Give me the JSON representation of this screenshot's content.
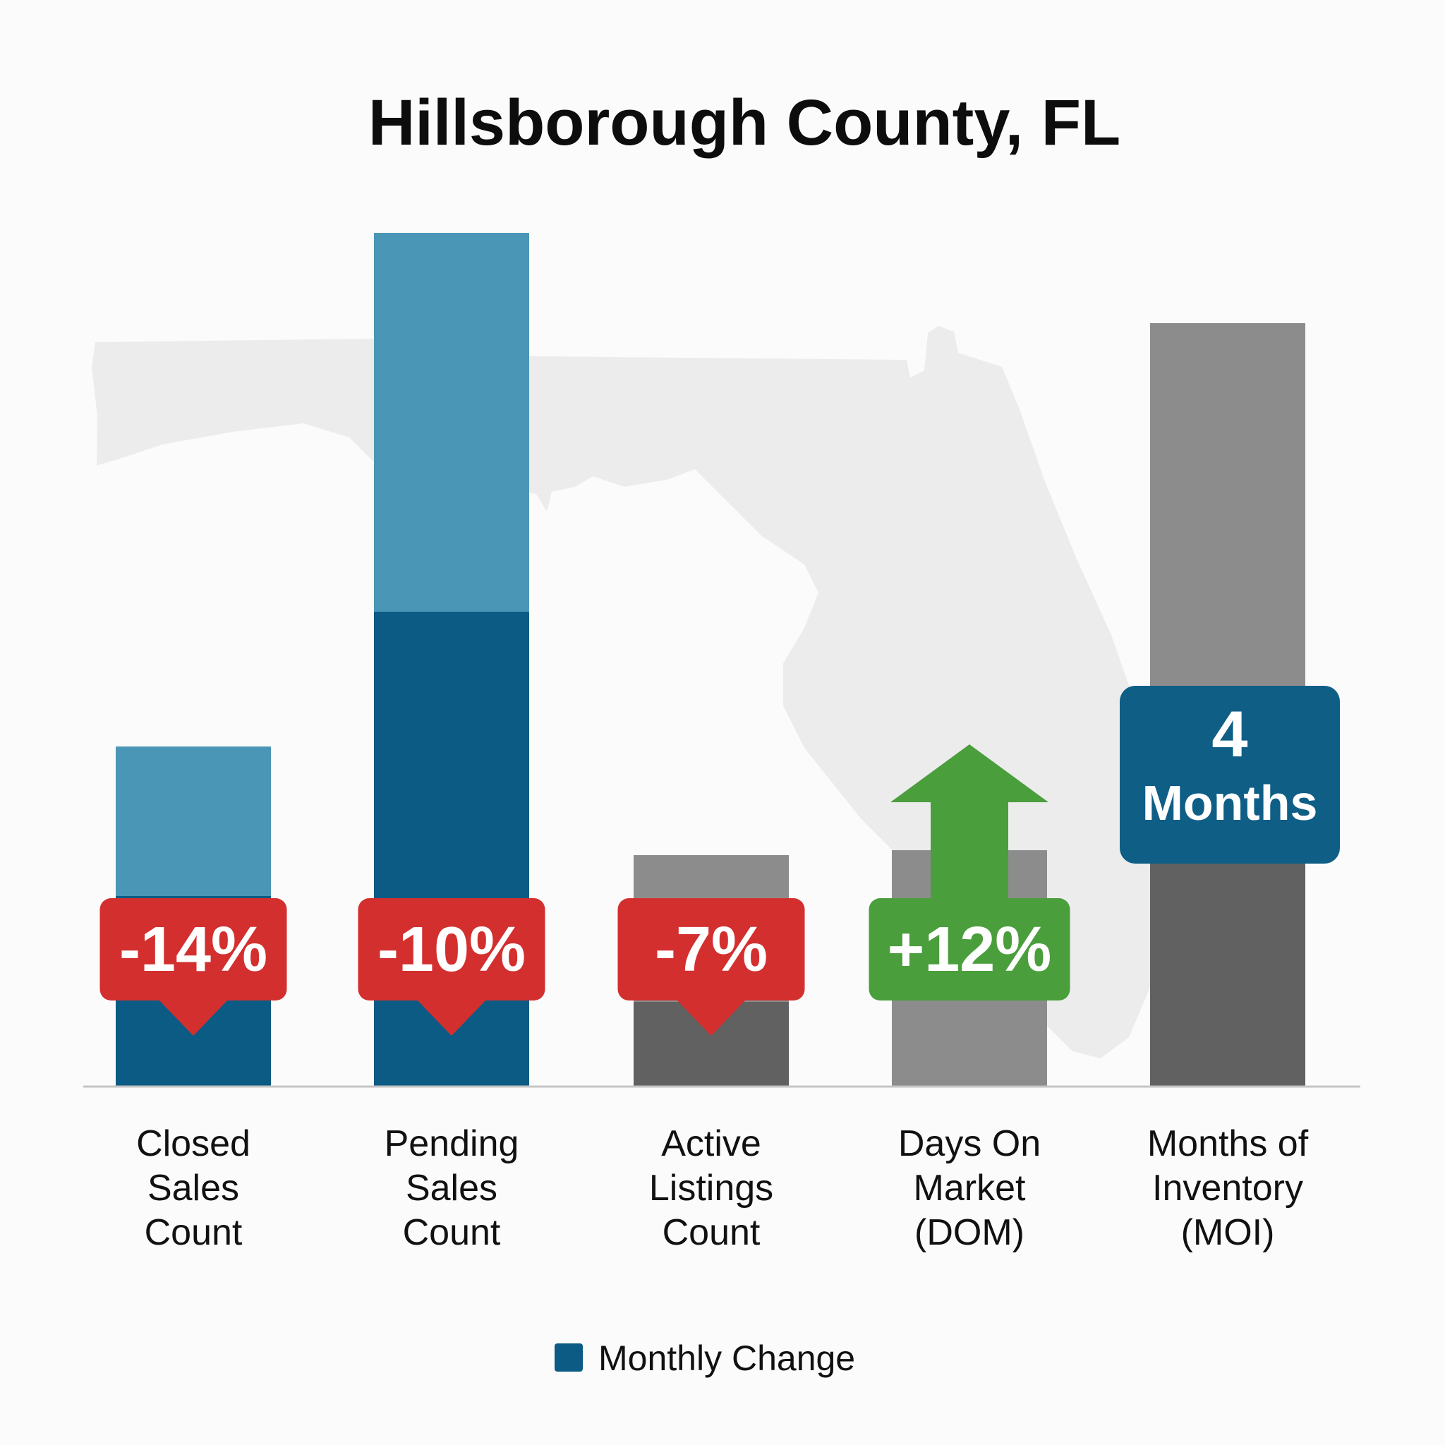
{
  "chart_data": {
    "type": "bar",
    "title": "Hillsborough County, FL",
    "categories": [
      [
        "Closed",
        "Sales",
        "Count"
      ],
      [
        "Pending",
        "Sales",
        "Count"
      ],
      [
        "Active",
        "Listings",
        "Count"
      ],
      [
        "Days On",
        "Market",
        "(DOM)"
      ],
      [
        "Months of",
        "Inventory",
        "(MOI)"
      ]
    ],
    "annotations": [
      {
        "category": 0,
        "text": "-14%",
        "direction": "down",
        "color": "#d32f2f"
      },
      {
        "category": 1,
        "text": "-10%",
        "direction": "down",
        "color": "#d32f2f"
      },
      {
        "category": 2,
        "text": "-7%",
        "direction": "down",
        "color": "#d32f2f"
      },
      {
        "category": 3,
        "text": "+12%",
        "direction": "up",
        "color": "#4a9e3c"
      },
      {
        "category": 4,
        "text": [
          "4",
          "Months"
        ],
        "direction": "none",
        "color": "#0f5e86"
      }
    ],
    "legend": {
      "label": "Monthly Change",
      "color": "#0b5b84",
      "position": "bottom-center"
    },
    "y_axis_shown": false,
    "grid": false
  },
  "colors": {
    "accent_blue_dark": "#0b5b84",
    "accent_blue_light": "#4a96b6",
    "gray_dark": "#616161",
    "gray_light": "#8c8c8c",
    "decrease_red": "#d32f2f",
    "increase_green": "#4a9e3c",
    "background_map": "#ececec"
  }
}
